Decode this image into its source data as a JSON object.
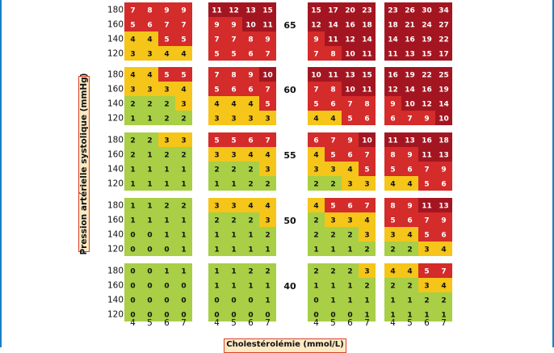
{
  "chart_data": {
    "type": "heatmap",
    "xlabel": "Cholestérolémie (mmol/L)",
    "ylabel": "Pression artérielle systolique (mmHg)",
    "cholesterol_ticks": [
      "4",
      "5",
      "6",
      "7"
    ],
    "pressure_ticks": [
      "180",
      "160",
      "140",
      "120"
    ],
    "age_labels": [
      "65",
      "60",
      "55",
      "50",
      "40"
    ],
    "panels": [
      {
        "age": "65",
        "group": 0,
        "values": [
          [
            7,
            8,
            9,
            9
          ],
          [
            5,
            6,
            7,
            7
          ],
          [
            4,
            4,
            5,
            5
          ],
          [
            3,
            3,
            4,
            4
          ]
        ]
      },
      {
        "age": "65",
        "group": 1,
        "values": [
          [
            11,
            12,
            13,
            15
          ],
          [
            9,
            9,
            10,
            11
          ],
          [
            7,
            7,
            8,
            9
          ],
          [
            5,
            5,
            6,
            7
          ]
        ]
      },
      {
        "age": "65",
        "group": 2,
        "values": [
          [
            15,
            17,
            20,
            23
          ],
          [
            12,
            14,
            16,
            18
          ],
          [
            9,
            11,
            12,
            14
          ],
          [
            7,
            8,
            10,
            11
          ]
        ]
      },
      {
        "age": "65",
        "group": 3,
        "values": [
          [
            23,
            26,
            30,
            34
          ],
          [
            18,
            21,
            24,
            27
          ],
          [
            14,
            16,
            19,
            22
          ],
          [
            11,
            13,
            15,
            17
          ]
        ]
      },
      {
        "age": "60",
        "group": 0,
        "values": [
          [
            4,
            4,
            5,
            5
          ],
          [
            3,
            3,
            3,
            4
          ],
          [
            2,
            2,
            2,
            3
          ],
          [
            1,
            1,
            2,
            2
          ]
        ]
      },
      {
        "age": "60",
        "group": 1,
        "values": [
          [
            7,
            8,
            9,
            10
          ],
          [
            5,
            6,
            6,
            7
          ],
          [
            4,
            4,
            4,
            5
          ],
          [
            3,
            3,
            3,
            3
          ]
        ]
      },
      {
        "age": "60",
        "group": 2,
        "values": [
          [
            10,
            11,
            13,
            15
          ],
          [
            7,
            8,
            10,
            11
          ],
          [
            5,
            6,
            7,
            8
          ],
          [
            4,
            4,
            5,
            6
          ]
        ]
      },
      {
        "age": "60",
        "group": 3,
        "values": [
          [
            16,
            19,
            22,
            25
          ],
          [
            12,
            14,
            16,
            19
          ],
          [
            9,
            10,
            12,
            14
          ],
          [
            6,
            7,
            9,
            10
          ]
        ]
      },
      {
        "age": "55",
        "group": 0,
        "values": [
          [
            2,
            2,
            3,
            3
          ],
          [
            2,
            1,
            2,
            2
          ],
          [
            1,
            1,
            1,
            1
          ],
          [
            1,
            1,
            1,
            1
          ]
        ]
      },
      {
        "age": "55",
        "group": 1,
        "values": [
          [
            5,
            5,
            6,
            7
          ],
          [
            3,
            3,
            4,
            4
          ],
          [
            2,
            2,
            2,
            3
          ],
          [
            1,
            1,
            2,
            2
          ]
        ]
      },
      {
        "age": "55",
        "group": 2,
        "values": [
          [
            6,
            7,
            9,
            10
          ],
          [
            4,
            5,
            6,
            7
          ],
          [
            3,
            3,
            4,
            5
          ],
          [
            2,
            2,
            3,
            3
          ]
        ]
      },
      {
        "age": "55",
        "group": 3,
        "values": [
          [
            11,
            13,
            16,
            18
          ],
          [
            8,
            9,
            11,
            13
          ],
          [
            5,
            6,
            7,
            9
          ],
          [
            4,
            4,
            5,
            6
          ]
        ]
      },
      {
        "age": "50",
        "group": 0,
        "values": [
          [
            1,
            1,
            2,
            2
          ],
          [
            1,
            1,
            1,
            1
          ],
          [
            0,
            0,
            1,
            1
          ],
          [
            0,
            0,
            0,
            1
          ]
        ]
      },
      {
        "age": "50",
        "group": 1,
        "values": [
          [
            3,
            3,
            4,
            4
          ],
          [
            2,
            2,
            2,
            3
          ],
          [
            1,
            1,
            1,
            2
          ],
          [
            1,
            1,
            1,
            1
          ]
        ]
      },
      {
        "age": "50",
        "group": 2,
        "values": [
          [
            4,
            5,
            6,
            7
          ],
          [
            2,
            3,
            3,
            4
          ],
          [
            2,
            2,
            2,
            3
          ],
          [
            1,
            1,
            1,
            2
          ]
        ]
      },
      {
        "age": "50",
        "group": 3,
        "values": [
          [
            8,
            9,
            11,
            13
          ],
          [
            5,
            6,
            7,
            9
          ],
          [
            3,
            4,
            5,
            6
          ],
          [
            2,
            2,
            3,
            4
          ]
        ]
      },
      {
        "age": "40",
        "group": 0,
        "values": [
          [
            0,
            0,
            1,
            1
          ],
          [
            0,
            0,
            0,
            0
          ],
          [
            0,
            0,
            0,
            0
          ],
          [
            0,
            0,
            0,
            0
          ]
        ]
      },
      {
        "age": "40",
        "group": 1,
        "values": [
          [
            1,
            1,
            2,
            2
          ],
          [
            1,
            1,
            1,
            1
          ],
          [
            0,
            0,
            0,
            1
          ],
          [
            0,
            0,
            0,
            0
          ]
        ]
      },
      {
        "age": "40",
        "group": 2,
        "values": [
          [
            2,
            2,
            2,
            3
          ],
          [
            1,
            1,
            1,
            2
          ],
          [
            0,
            1,
            1,
            1
          ],
          [
            0,
            0,
            0,
            1
          ]
        ]
      },
      {
        "age": "40",
        "group": 3,
        "values": [
          [
            4,
            4,
            5,
            7
          ],
          [
            2,
            2,
            3,
            4
          ],
          [
            1,
            1,
            2,
            2
          ],
          [
            1,
            1,
            1,
            1
          ]
        ]
      }
    ],
    "legend": [],
    "grid": false
  },
  "colors": {
    "green": "#a8cf45",
    "yellow": "#f5c519",
    "orange": "#e45c2c",
    "red": "#d42b2b",
    "darkred": "#a31621",
    "text": "#111111",
    "frame": "#1a7fc4"
  }
}
